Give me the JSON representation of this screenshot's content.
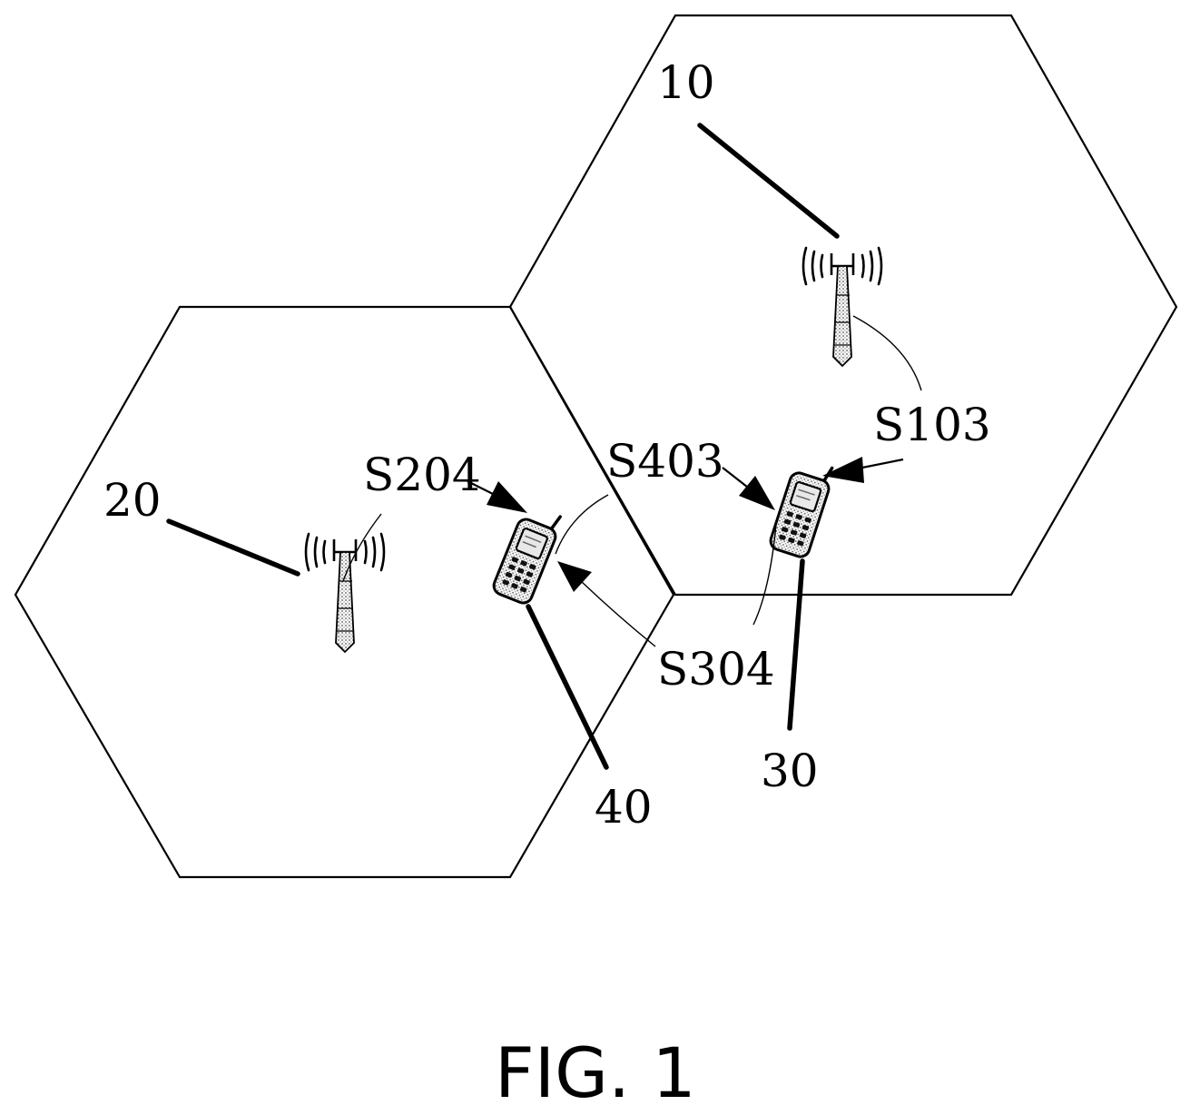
{
  "labels": {
    "base_station_1": "10",
    "base_station_2": "20",
    "terminal_1": "30",
    "terminal_2": "40",
    "step_s103": "S103",
    "step_s204": "S204",
    "step_s403": "S403",
    "step_s304": "S304"
  },
  "caption": "FIG. 1",
  "icons": {
    "base_station": "antenna-tower-icon",
    "terminal": "mobile-phone-icon"
  },
  "colors": {
    "line": "#000000",
    "tower_fill": "#b9b9b9",
    "phone_fill": "#c8c8c8"
  }
}
